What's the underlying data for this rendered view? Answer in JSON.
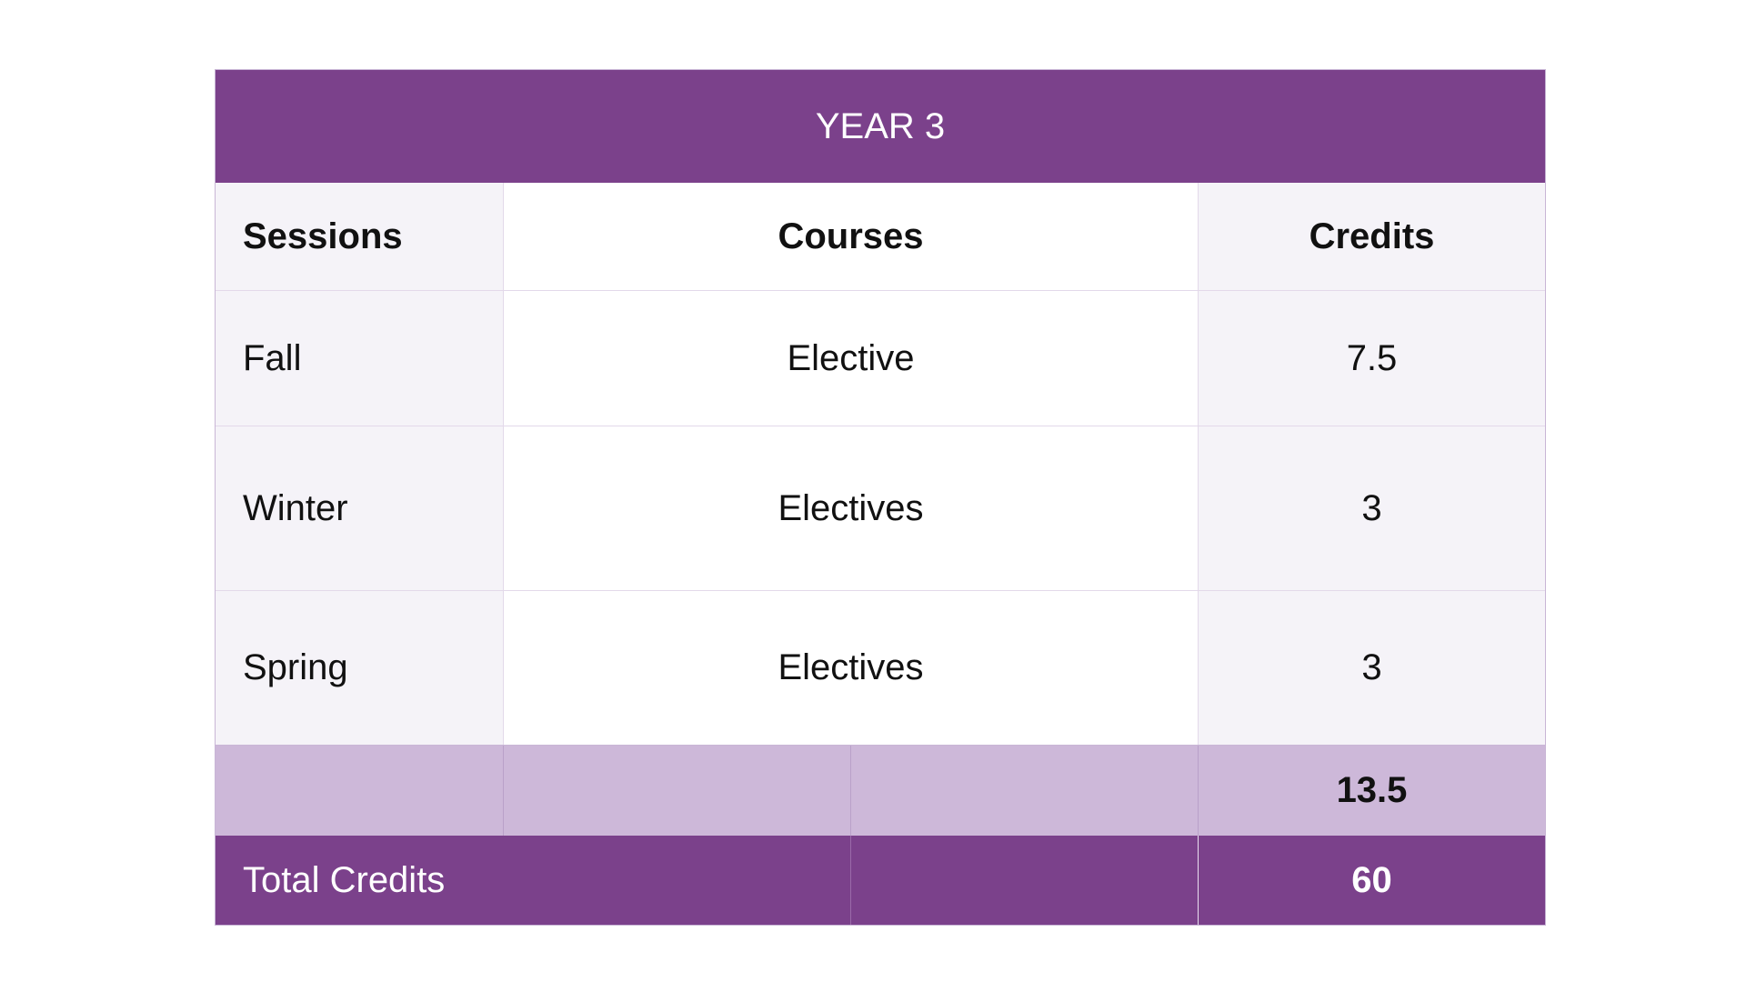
{
  "table": {
    "title": "YEAR 3",
    "headers": {
      "sessions": "Sessions",
      "courses": "Courses",
      "credits": "Credits"
    },
    "rows": [
      {
        "session": "Fall",
        "course": "Elective",
        "credits": "7.5"
      },
      {
        "session": "Winter",
        "course": "Electives",
        "credits": "3"
      },
      {
        "session": "Spring",
        "course": "Electives",
        "credits": "3"
      }
    ],
    "subtotal": "13.5",
    "total_label": "Total Credits",
    "total_value": "60"
  },
  "colors": {
    "accent": "#7b418b",
    "subtotal_bg": "#cdb8d9",
    "cell_bg": "#f5f3f8"
  }
}
